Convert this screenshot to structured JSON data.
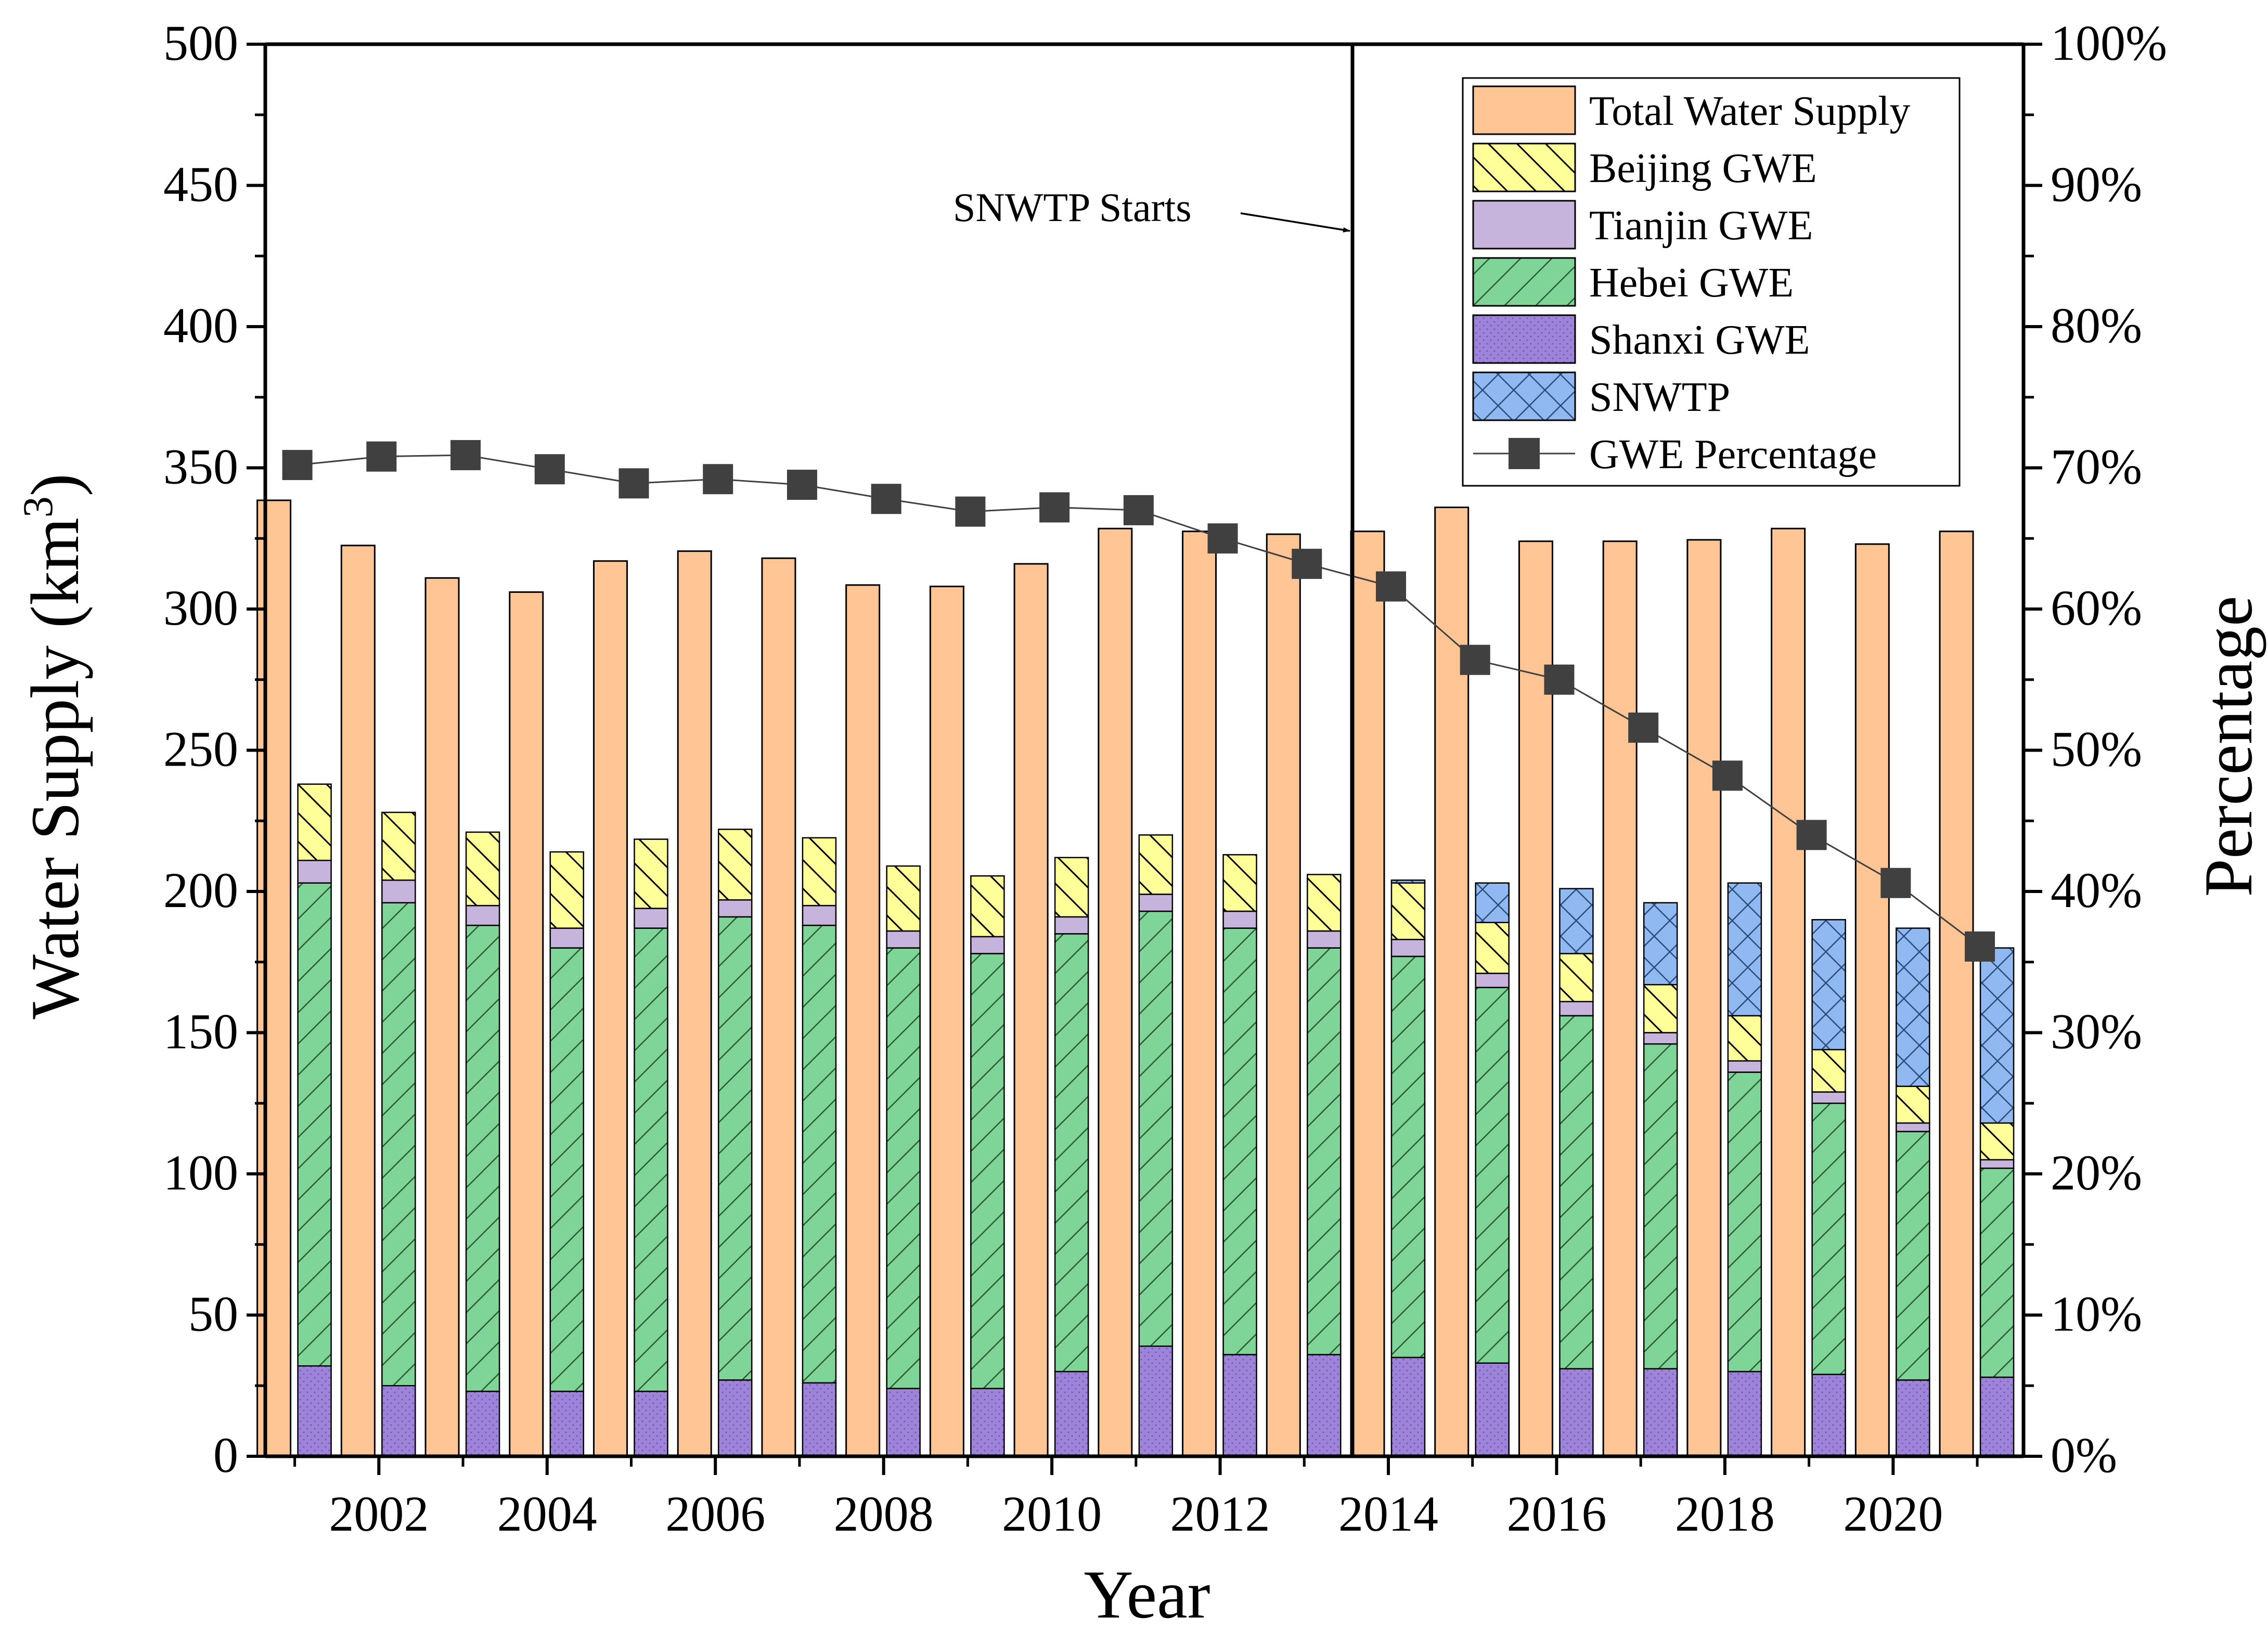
{
  "chart_data": {
    "type": "bar",
    "title": "",
    "xlabel": "Year",
    "ylabel": "Water Supply (km",
    "ylabel_superscript": "3",
    "ylabel_close": ")",
    "y2label": "Percentage",
    "ylim": [
      0,
      500
    ],
    "y2lim": [
      0,
      100
    ],
    "yticks": [
      0,
      50,
      100,
      150,
      200,
      250,
      300,
      350,
      400,
      450,
      500
    ],
    "y2ticks": [
      "0%",
      "10%",
      "20%",
      "30%",
      "40%",
      "50%",
      "60%",
      "70%",
      "80%",
      "90%",
      "100%"
    ],
    "xtick_labels": [
      "2002",
      "2004",
      "2006",
      "2008",
      "2010",
      "2012",
      "2014",
      "2016",
      "2018",
      "2020"
    ],
    "categories": [
      2001,
      2002,
      2003,
      2004,
      2005,
      2006,
      2007,
      2008,
      2009,
      2010,
      2011,
      2012,
      2013,
      2014,
      2015,
      2016,
      2017,
      2018,
      2019,
      2020,
      2021
    ],
    "series": [
      {
        "name": "Total Water Supply",
        "color": "#FFC594",
        "values": [
          338.5,
          322.5,
          311,
          306,
          317,
          320.5,
          318,
          308.5,
          308,
          316,
          328.5,
          327.5,
          326.5,
          327.5,
          336,
          324,
          324,
          324.5,
          328.5,
          323,
          327.5
        ]
      },
      {
        "name": "Shanxi GWE",
        "color": "#9E84D8",
        "values": [
          32,
          25,
          23,
          23,
          23,
          27,
          26,
          24,
          24,
          30,
          39,
          36,
          36,
          35,
          33,
          31,
          31,
          30,
          29,
          27,
          28
        ]
      },
      {
        "name": "Hebei GWE",
        "color": "#7FD598",
        "values": [
          171,
          171,
          165,
          157,
          164,
          164,
          162,
          156,
          154,
          155,
          154,
          151,
          144,
          142,
          133,
          125,
          115,
          106,
          96,
          88,
          74
        ]
      },
      {
        "name": "Tianjin GWE",
        "color": "#C6B4DC",
        "values": [
          8,
          8,
          7,
          7,
          7,
          6,
          7,
          6,
          6,
          6,
          6,
          6,
          6,
          6,
          5,
          5,
          4,
          4,
          4,
          3,
          3
        ]
      },
      {
        "name": "Beijing GWE",
        "color": "#FFFF9A",
        "values": [
          27,
          24,
          26,
          27,
          24.5,
          25,
          24,
          23,
          21.5,
          21,
          21,
          20,
          20,
          20,
          18,
          17,
          17,
          16,
          15,
          13,
          13
        ]
      },
      {
        "name": "SNWTP",
        "color": "#8FB9F0",
        "values": [
          0,
          0,
          0,
          0,
          0,
          0,
          0,
          0,
          0,
          0,
          0,
          0,
          0,
          1,
          14,
          23,
          29,
          47,
          46,
          56,
          62
        ]
      },
      {
        "name": "GWE Percentage",
        "color": "#404040",
        "values": [
          70.2,
          70.8,
          70.9,
          69.9,
          68.9,
          69.2,
          68.8,
          67.8,
          66.9,
          67.2,
          67.0,
          65.0,
          63.2,
          61.6,
          56.4,
          55.0,
          51.6,
          48.2,
          44.0,
          40.6,
          36.1
        ]
      }
    ],
    "legend": {
      "placement": "top-right",
      "entries": [
        "Total Water Supply",
        "Beijing GWE",
        "Tianjin GWE",
        "Hebei GWE",
        "Shanxi GWE",
        "SNWTP",
        "GWE Percentage"
      ]
    },
    "annotations": [
      {
        "text": "SNWTP Starts",
        "x": 2013.5,
        "note": "vertical divider line"
      }
    ],
    "grid": false
  }
}
